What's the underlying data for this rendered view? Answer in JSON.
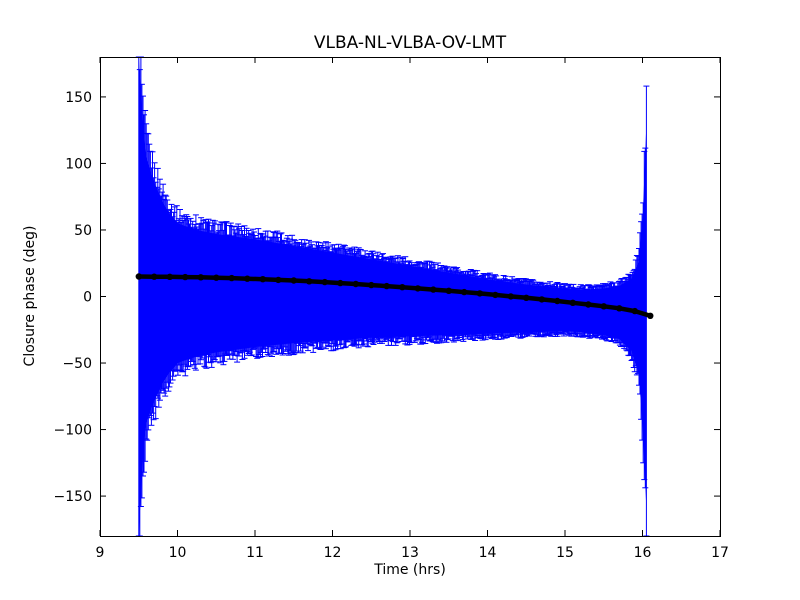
{
  "chart_data": {
    "type": "line",
    "title": "VLBA-NL-VLBA-OV-LMT",
    "xlabel": "Time (hrs)",
    "ylabel": "Closure phase (deg)",
    "xlim": [
      9,
      17
    ],
    "ylim": [
      -180,
      180
    ],
    "xticks": [
      9,
      10,
      11,
      12,
      13,
      14,
      15,
      16,
      17
    ],
    "yticks": [
      -150,
      -100,
      -50,
      0,
      50,
      100,
      150
    ],
    "grid": false,
    "legend": "none",
    "background_color": "#ffffff",
    "frame_color": "#000000",
    "series": [
      {
        "name": "closure phase",
        "color": "#000000",
        "marker": "circle",
        "x": [
          9.5,
          9.7,
          9.9,
          10.1,
          10.3,
          10.5,
          10.7,
          10.9,
          11.1,
          11.3,
          11.5,
          11.7,
          11.9,
          12.1,
          12.3,
          12.5,
          12.7,
          12.9,
          13.1,
          13.3,
          13.5,
          13.7,
          13.9,
          14.1,
          14.3,
          14.5,
          14.7,
          14.9,
          15.1,
          15.3,
          15.5,
          15.7,
          15.9,
          16.1
        ],
        "y": [
          15.0,
          14.9,
          14.8,
          14.6,
          14.4,
          14.1,
          13.8,
          13.4,
          13.0,
          12.5,
          12.0,
          11.4,
          10.8,
          10.1,
          9.4,
          8.6,
          7.8,
          7.0,
          6.1,
          5.2,
          4.3,
          3.3,
          2.3,
          1.2,
          0.1,
          -1.0,
          -2.2,
          -3.4,
          -4.7,
          -6.0,
          -7.4,
          -8.9,
          -11.0,
          -14.5
        ]
      }
    ],
    "error_band": {
      "name": "error bars",
      "color": "#0000ff",
      "x": [
        9.5,
        9.55,
        9.6,
        9.7,
        9.8,
        9.9,
        10.0,
        10.25,
        10.5,
        11.0,
        11.5,
        12.0,
        12.5,
        13.0,
        13.5,
        14.0,
        14.5,
        15.0,
        15.25,
        15.5,
        15.7,
        15.85,
        15.95,
        16.0,
        16.05
      ],
      "upper": [
        180,
        130,
        105,
        85,
        72,
        62,
        55,
        50,
        47,
        43,
        38,
        33,
        28,
        23,
        18,
        13,
        9,
        6,
        5,
        6,
        8,
        13,
        26,
        55,
        130
      ],
      "lower": [
        -180,
        -120,
        -95,
        -78,
        -66,
        -57,
        -50,
        -45,
        -42,
        -38,
        -35,
        -33,
        -31,
        -30,
        -29,
        -28,
        -27,
        -26,
        -27,
        -29,
        -32,
        -40,
        -58,
        -95,
        -160
      ]
    }
  }
}
